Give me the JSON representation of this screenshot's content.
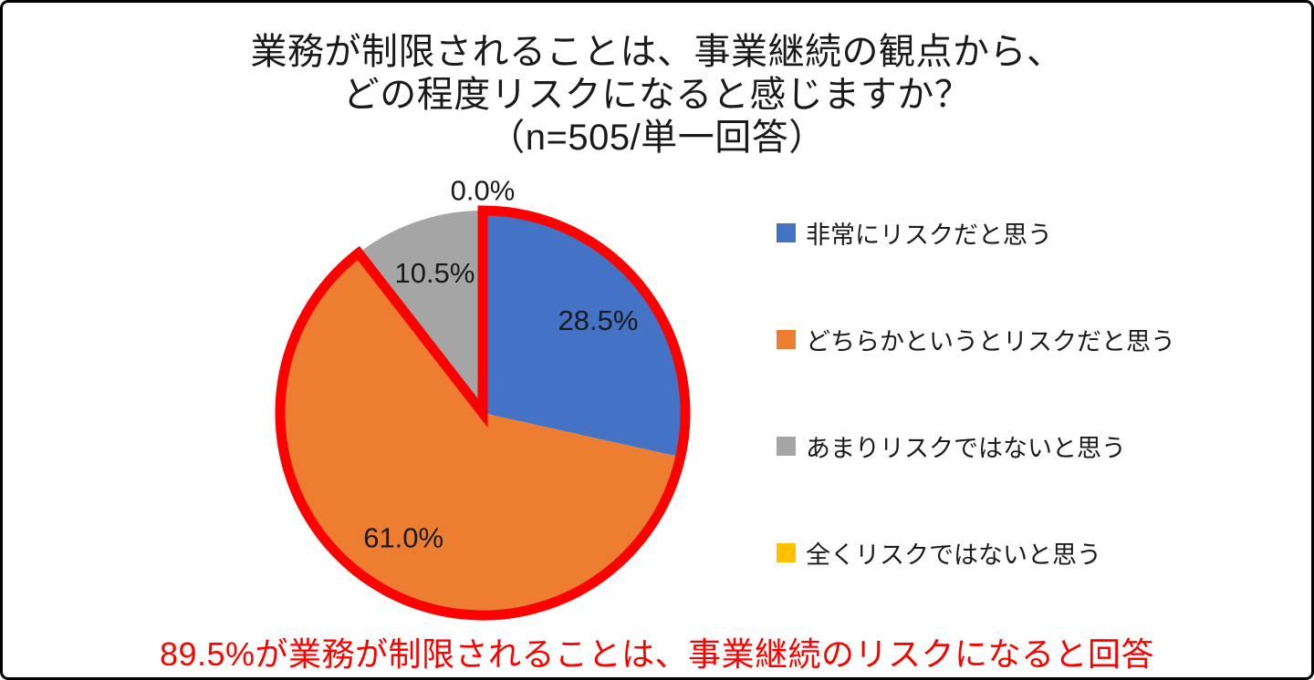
{
  "page": {
    "background": "#FFFFFF",
    "border_color": "#000000"
  },
  "title": {
    "line1": "業務が制限されることは、事業継続の観点から、",
    "line2": "どの程度リスクになると感じますか？",
    "line3": "（n=505/単一回答）"
  },
  "legend": {
    "position": "right",
    "items": [
      {
        "label": "非常にリスクだと思う",
        "color": "#4472C4"
      },
      {
        "label": "どちらかというとリスクだと思う",
        "color": "#ED7D31"
      },
      {
        "label": "あまりリスクではないと思う",
        "color": "#A5A5A5"
      },
      {
        "label": "全くリスクではないと思う",
        "color": "#FFC000"
      }
    ]
  },
  "annotation": {
    "text": "89.5%が業務が制限されることは、事業継続のリスクになると回答",
    "color": "#FF0000"
  },
  "chart_data": {
    "type": "pie",
    "title": "業務が制限されることは、事業継続の観点から、どの程度リスクになると感じますか？（n=505/単一回答）",
    "sample_note": "n=505/単一回答",
    "categories": [
      "非常にリスクだと思う",
      "どちらかというとリスクだと思う",
      "あまりリスクではないと思う",
      "全くリスクではないと思う"
    ],
    "values": [
      28.5,
      61.0,
      10.5,
      0.0
    ],
    "value_labels": [
      "28.5%",
      "61.0%",
      "10.5%",
      "0.0%"
    ],
    "colors": [
      "#4472C4",
      "#ED7D31",
      "#A5A5A5",
      "#FFC000"
    ],
    "start_angle_deg": 0,
    "direction": "clockwise",
    "legend_position": "right",
    "label_color": "#1a1a1a",
    "label_radius_factors": [
      0.73,
      0.73,
      0.73,
      1.1
    ],
    "highlight": {
      "segments": [
        0,
        1
      ],
      "combined_value": 89.5,
      "color": "#FF0000",
      "style": "thick red outline around the two risk segments"
    }
  }
}
